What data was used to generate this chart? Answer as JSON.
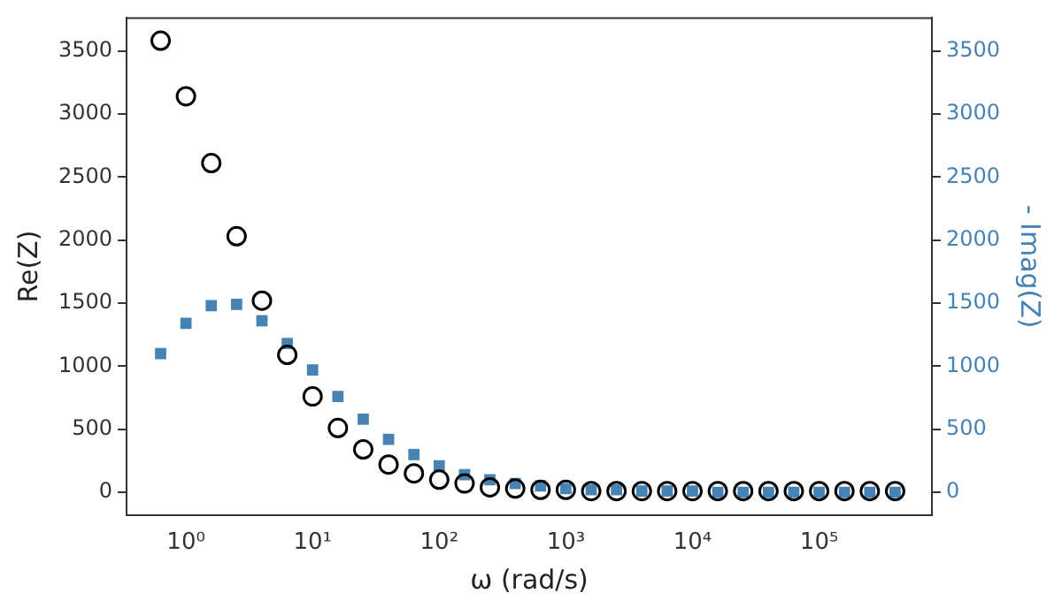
{
  "chart_data": {
    "type": "scatter",
    "xlabel": "ω (rad/s)",
    "ylabel": "Re(Z)",
    "y2label": "- Imag(Z)",
    "log": "x",
    "grid": false,
    "legend": false,
    "x": [
      0.631,
      1,
      1.585,
      2.512,
      3.981,
      6.31,
      10,
      15.85,
      25.12,
      39.81,
      63.1,
      100,
      158.5,
      251.2,
      398.1,
      631,
      1000,
      1585,
      2512,
      3981,
      6310,
      10000,
      15850,
      25120,
      39810,
      63100,
      100000,
      158500,
      251200,
      398100
    ],
    "xlim": [
      0.34,
      776000
    ],
    "xticks": [
      {
        "value": 1,
        "label": "10⁰"
      },
      {
        "value": 10,
        "label": "10¹"
      },
      {
        "value": 100,
        "label": "10²"
      },
      {
        "value": 1000,
        "label": "10³"
      },
      {
        "value": 10000,
        "label": "10⁴"
      },
      {
        "value": 100000,
        "label": "10⁵"
      }
    ],
    "ylim": [
      -180,
      3760
    ],
    "yticks": [
      0,
      500,
      1000,
      1500,
      2000,
      2500,
      3000,
      3500
    ],
    "y2lim": [
      -180,
      3760
    ],
    "y2ticks": [
      0,
      500,
      1000,
      1500,
      2000,
      2500,
      3000,
      3500
    ],
    "series": [
      {
        "color": "#000000",
        "marker": "circle",
        "values": [
          3580,
          3140,
          2610,
          2030,
          1520,
          1090,
          760,
          510,
          340,
          220,
          150,
          100,
          70,
          40,
          30,
          20,
          20,
          10,
          10,
          10,
          10,
          10,
          10,
          10,
          10,
          10,
          10,
          10,
          10,
          10
        ]
      },
      {
        "color": "#4682b4",
        "marker": "square",
        "axis": "y2",
        "values": [
          1100,
          1340,
          1480,
          1490,
          1360,
          1180,
          970,
          760,
          580,
          420,
          300,
          210,
          140,
          100,
          70,
          50,
          30,
          20,
          20,
          10,
          10,
          10,
          0,
          0,
          0,
          0,
          0,
          0,
          0,
          0
        ]
      }
    ]
  }
}
